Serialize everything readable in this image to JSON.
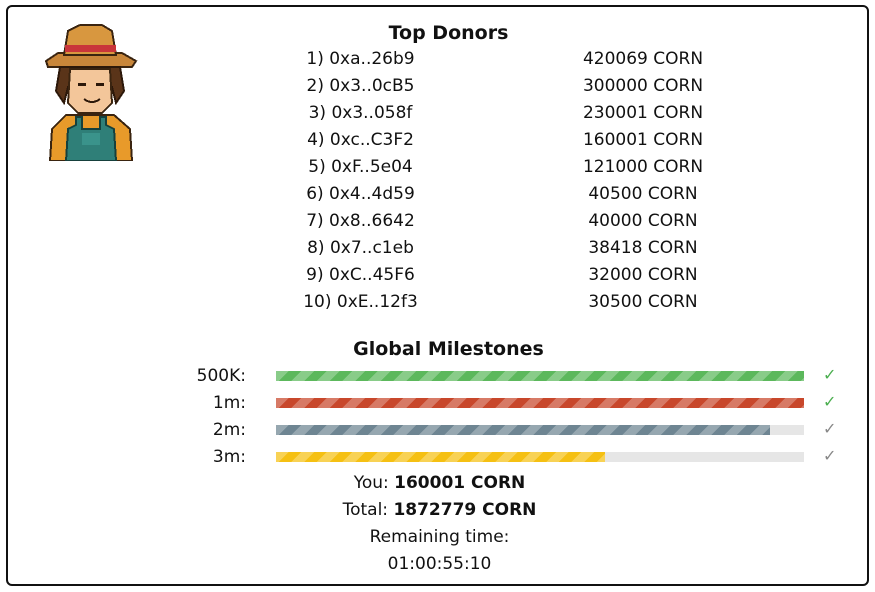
{
  "donors": {
    "title": "Top Donors",
    "rows": [
      {
        "rank": "1) 0xa..26b9",
        "amount": "420069 CORN"
      },
      {
        "rank": "2) 0x3..0cB5",
        "amount": "300000 CORN"
      },
      {
        "rank": "3) 0x3..058f",
        "amount": "230001 CORN"
      },
      {
        "rank": "4) 0xc..C3F2",
        "amount": "160001 CORN"
      },
      {
        "rank": "5) 0xF..5e04",
        "amount": "121000 CORN"
      },
      {
        "rank": "6) 0x4..4d59",
        "amount": "40500 CORN"
      },
      {
        "rank": "7) 0x8..6642",
        "amount": "40000 CORN"
      },
      {
        "rank": "8) 0x7..c1eb",
        "amount": "38418 CORN"
      },
      {
        "rank": "9) 0xC..45F6",
        "amount": "32000 CORN"
      },
      {
        "rank": "10) 0xE..12f3",
        "amount": "30500 CORN"
      }
    ]
  },
  "milestones": {
    "title": "Global Milestones",
    "rows": [
      {
        "label": "500K:",
        "progress": 1.0,
        "color": "#5cb85c",
        "check_color": "#4caf50"
      },
      {
        "label": "1m:",
        "progress": 1.0,
        "color": "#c8472b",
        "check_color": "#4caf50"
      },
      {
        "label": "2m:",
        "progress": 0.936,
        "color": "#6e8592",
        "check_color": "#888888"
      },
      {
        "label": "3m:",
        "progress": 0.624,
        "color": "#f5c013",
        "check_color": "#888888"
      }
    ],
    "check_icon": "check-icon"
  },
  "summary": {
    "you_label": "You:",
    "you_value": "160001 CORN",
    "total_label": "Total:",
    "total_value": "1872779 CORN",
    "remaining_label": "Remaining time:",
    "remaining_value": "01:00:55:10"
  }
}
